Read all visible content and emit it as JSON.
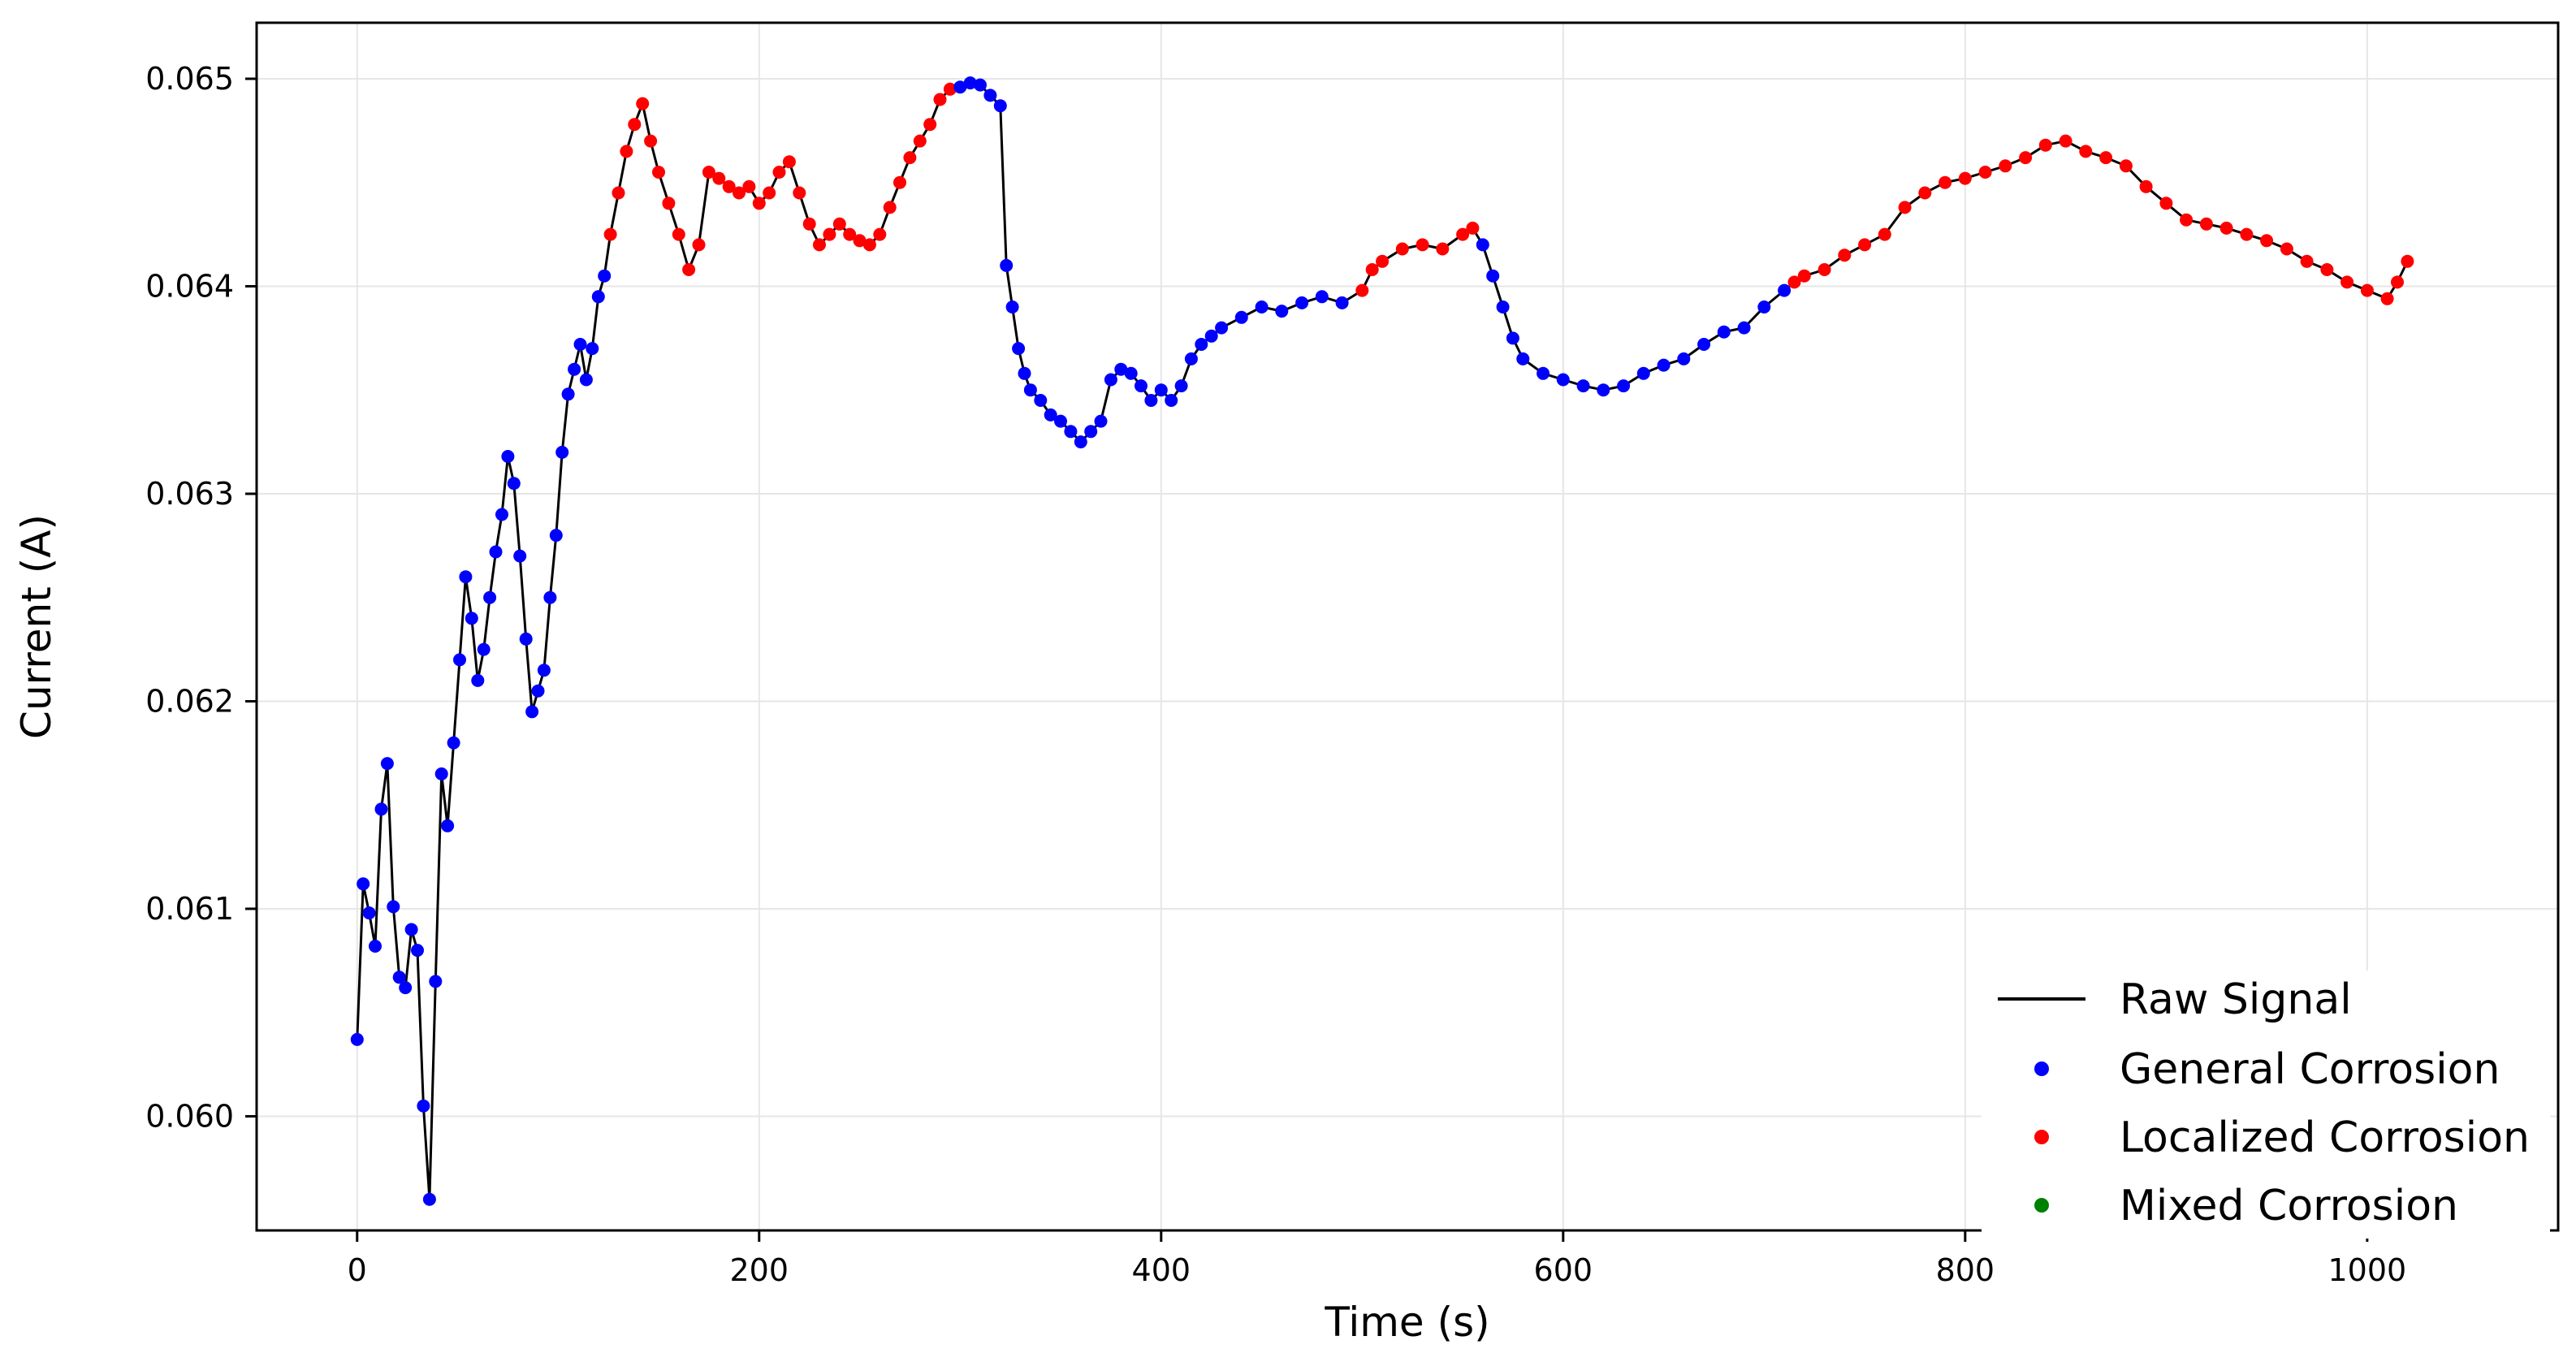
{
  "chart_data": {
    "type": "line",
    "title": "",
    "xlabel": "Time (s)",
    "ylabel": "Current (A)",
    "xlim": [
      -50,
      1095
    ],
    "ylim": [
      0.05945,
      0.06527
    ],
    "xticks": [
      0,
      200,
      400,
      600,
      800,
      1000
    ],
    "xtick_labels": [
      "0",
      "200",
      "400",
      "600",
      "800",
      "1000"
    ],
    "yticks": [
      0.06,
      0.061,
      0.062,
      0.063,
      0.064,
      0.065
    ],
    "ytick_labels": [
      "0.060",
      "0.061",
      "0.062",
      "0.063",
      "0.064",
      "0.065"
    ],
    "grid": true,
    "legend_position": "bottom-right",
    "colors": {
      "raw_signal": "#000000",
      "general": "#0000ff",
      "localized": "#ff0000",
      "mixed": "#008000",
      "grid": "#e6e6e6"
    },
    "series": [
      {
        "name": "Raw Signal",
        "style": "line",
        "color": "#000000",
        "x": [
          0,
          3,
          6,
          9,
          12,
          15,
          18,
          21,
          24,
          27,
          30,
          33,
          36,
          39,
          42,
          45,
          48,
          51,
          54,
          57,
          60,
          63,
          66,
          69,
          72,
          75,
          78,
          81,
          84,
          87,
          90,
          93,
          96,
          99,
          102,
          105,
          108,
          111,
          114,
          117,
          120,
          123,
          126,
          130,
          134,
          138,
          142,
          146,
          150,
          155,
          160,
          165,
          170,
          175,
          180,
          185,
          190,
          195,
          200,
          205,
          210,
          215,
          220,
          225,
          230,
          235,
          240,
          245,
          250,
          255,
          260,
          265,
          270,
          275,
          280,
          285,
          290,
          295,
          300,
          305,
          310,
          315,
          320,
          323,
          326,
          329,
          332,
          335,
          340,
          345,
          350,
          355,
          360,
          365,
          370,
          375,
          380,
          385,
          390,
          395,
          400,
          405,
          410,
          415,
          420,
          425,
          430,
          440,
          450,
          460,
          470,
          480,
          490,
          500,
          505,
          510,
          520,
          530,
          540,
          550,
          555,
          560,
          565,
          570,
          575,
          580,
          590,
          600,
          610,
          620,
          630,
          640,
          650,
          660,
          670,
          680,
          690,
          700,
          710,
          715,
          720,
          730,
          740,
          750,
          760,
          770,
          780,
          790,
          800,
          810,
          820,
          830,
          840,
          850,
          860,
          870,
          880,
          890,
          900,
          910,
          920,
          930,
          940,
          950,
          960,
          970,
          980,
          990,
          1000,
          1010,
          1015,
          1020
        ],
        "y": [
          0.06037,
          0.06112,
          0.06098,
          0.06082,
          0.06148,
          0.0617,
          0.06101,
          0.06067,
          0.06062,
          0.0609,
          0.0608,
          0.06005,
          0.0596,
          0.06065,
          0.06165,
          0.0614,
          0.0618,
          0.0622,
          0.0626,
          0.0624,
          0.0621,
          0.06225,
          0.0625,
          0.06272,
          0.0629,
          0.06318,
          0.06305,
          0.0627,
          0.0623,
          0.06195,
          0.06205,
          0.06215,
          0.0625,
          0.0628,
          0.0632,
          0.06348,
          0.0636,
          0.06372,
          0.06355,
          0.0637,
          0.06395,
          0.06405,
          0.06425,
          0.06445,
          0.06465,
          0.06478,
          0.06488,
          0.0647,
          0.06455,
          0.0644,
          0.06425,
          0.06408,
          0.0642,
          0.06455,
          0.06452,
          0.06448,
          0.06445,
          0.06448,
          0.0644,
          0.06445,
          0.06455,
          0.0646,
          0.06445,
          0.0643,
          0.0642,
          0.06425,
          0.0643,
          0.06425,
          0.06422,
          0.0642,
          0.06425,
          0.06438,
          0.0645,
          0.06462,
          0.0647,
          0.06478,
          0.0649,
          0.06495,
          0.06496,
          0.06498,
          0.06497,
          0.06492,
          0.06487,
          0.0641,
          0.0639,
          0.0637,
          0.06358,
          0.0635,
          0.06345,
          0.06338,
          0.06335,
          0.0633,
          0.06325,
          0.0633,
          0.06335,
          0.06355,
          0.0636,
          0.06358,
          0.06352,
          0.06345,
          0.0635,
          0.06345,
          0.06352,
          0.06365,
          0.06372,
          0.06376,
          0.0638,
          0.06385,
          0.0639,
          0.06388,
          0.06392,
          0.06395,
          0.06392,
          0.06398,
          0.06408,
          0.06412,
          0.06418,
          0.0642,
          0.06418,
          0.06425,
          0.06428,
          0.0642,
          0.06405,
          0.0639,
          0.06375,
          0.06365,
          0.06358,
          0.06355,
          0.06352,
          0.0635,
          0.06352,
          0.06358,
          0.06362,
          0.06365,
          0.06372,
          0.06378,
          0.0638,
          0.0639,
          0.06398,
          0.06402,
          0.06405,
          0.06408,
          0.06415,
          0.0642,
          0.06425,
          0.06438,
          0.06445,
          0.0645,
          0.06452,
          0.06455,
          0.06458,
          0.06462,
          0.06468,
          0.0647,
          0.06465,
          0.06462,
          0.06458,
          0.06448,
          0.0644,
          0.06432,
          0.0643,
          0.06428,
          0.06425,
          0.06422,
          0.06418,
          0.06412,
          0.06408,
          0.06402,
          0.06398,
          0.06394,
          0.06402,
          0.06412
        ]
      },
      {
        "name": "General Corrosion",
        "style": "scatter",
        "color": "#0000ff",
        "segments": [
          [
            0,
            126
          ],
          [
            300,
            500
          ],
          [
            560,
            715
          ]
        ]
      },
      {
        "name": "Localized Corrosion",
        "style": "scatter",
        "color": "#ff0000",
        "segments": [
          [
            126,
            300
          ],
          [
            500,
            560
          ],
          [
            715,
            1020
          ]
        ]
      },
      {
        "name": "Mixed Corrosion",
        "style": "scatter",
        "color": "#008000",
        "segments": []
      }
    ]
  }
}
